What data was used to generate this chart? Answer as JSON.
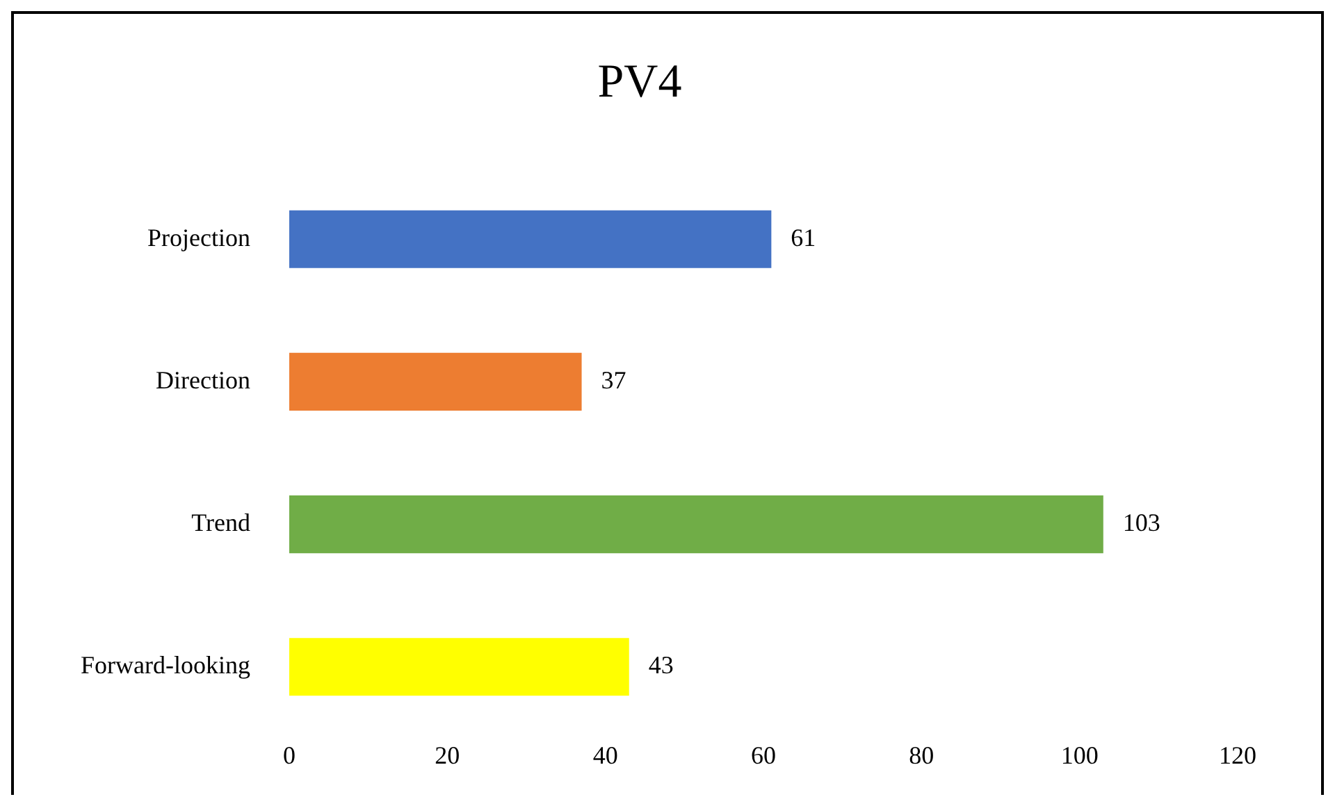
{
  "chart_data": {
    "type": "bar",
    "orientation": "horizontal",
    "title": "PV4",
    "categories": [
      "Projection",
      "Direction",
      "Trend",
      "Forward-looking"
    ],
    "values": [
      61,
      37,
      103,
      43
    ],
    "colors": [
      "#4472c4",
      "#ed7d31",
      "#70ad47",
      "#ffff00"
    ],
    "xlim": [
      0,
      120
    ],
    "xticks": [
      0,
      20,
      40,
      60,
      80,
      100,
      120
    ],
    "grid": false,
    "legend": false,
    "data_labels": true
  }
}
